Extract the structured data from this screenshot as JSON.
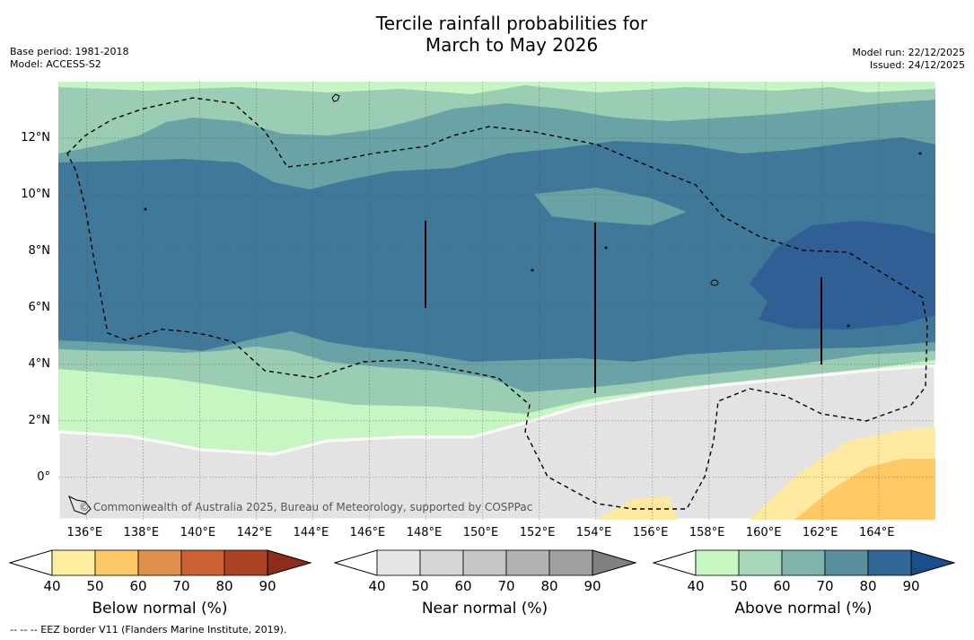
{
  "header": {
    "title_line1": "Tercile rainfall probabilities for",
    "title_line2": "March to May 2026",
    "base_period": "Base period: 1981-2018",
    "model": "Model: ACCESS-S2",
    "model_run": "Model run: 22/12/2025",
    "issued": "Issued: 24/12/2025"
  },
  "map": {
    "lon_range": [
      135,
      166
    ],
    "lat_range": [
      -1.5,
      14
    ],
    "lat_ticks": [
      {
        "value": 12,
        "label": "12°N"
      },
      {
        "value": 10,
        "label": "10°N"
      },
      {
        "value": 8,
        "label": "8°N"
      },
      {
        "value": 6,
        "label": "6°N"
      },
      {
        "value": 4,
        "label": "4°N"
      },
      {
        "value": 2,
        "label": "2°N"
      },
      {
        "value": 0,
        "label": "0°"
      }
    ],
    "lon_ticks": [
      {
        "value": 136,
        "label": "136°E"
      },
      {
        "value": 138,
        "label": "138°E"
      },
      {
        "value": 140,
        "label": "140°E"
      },
      {
        "value": 142,
        "label": "142°E"
      },
      {
        "value": 144,
        "label": "144°E"
      },
      {
        "value": 146,
        "label": "146°E"
      },
      {
        "value": 148,
        "label": "148°E"
      },
      {
        "value": 150,
        "label": "150°E"
      },
      {
        "value": 152,
        "label": "152°E"
      },
      {
        "value": 154,
        "label": "154°E"
      },
      {
        "value": 156,
        "label": "156°E"
      },
      {
        "value": 158,
        "label": "158°E"
      },
      {
        "value": 160,
        "label": "160°E"
      },
      {
        "value": 162,
        "label": "162°E"
      },
      {
        "value": 164,
        "label": "164°E"
      }
    ],
    "copyright": "© Commonwealth of Australia 2025, Bureau of Meteorology, supported by COSPPac",
    "colors": {
      "above_50": "#c6f7c3",
      "above_60": "#9acdb4",
      "above_70": "#6aa3a6",
      "above_80": "#3f7899",
      "above_90": "#2f5f95",
      "near_50": "#e3e3e3",
      "below_50": "#ffe9a0",
      "below_60": "#ffc966",
      "eez_line": "#000000"
    }
  },
  "legends": [
    {
      "name": "below",
      "title": "Below normal (%)",
      "ticks": [
        "40",
        "50",
        "60",
        "70",
        "80",
        "90"
      ],
      "colors": [
        "#ffffff",
        "#ffeda0",
        "#fdc966",
        "#e0904a",
        "#cc6033",
        "#ac4322",
        "#8b2d1a"
      ]
    },
    {
      "name": "near",
      "title": "Near normal (%)",
      "ticks": [
        "40",
        "50",
        "60",
        "70",
        "80",
        "90"
      ],
      "colors": [
        "#ffffff",
        "#e6e6e6",
        "#d6d6d6",
        "#c6c6c6",
        "#b2b2b2",
        "#a0a0a0",
        "#808080"
      ]
    },
    {
      "name": "above",
      "title": "Above normal (%)",
      "ticks": [
        "40",
        "50",
        "60",
        "70",
        "80",
        "90"
      ],
      "colors": [
        "#ffffff",
        "#c6f7c3",
        "#a5d7b8",
        "#80b3ab",
        "#5a8fa0",
        "#33679a",
        "#1a4d8b"
      ]
    }
  ],
  "footnote": "--  --  -- EEZ border V11 (Flanders Marine Institute, 2019)."
}
